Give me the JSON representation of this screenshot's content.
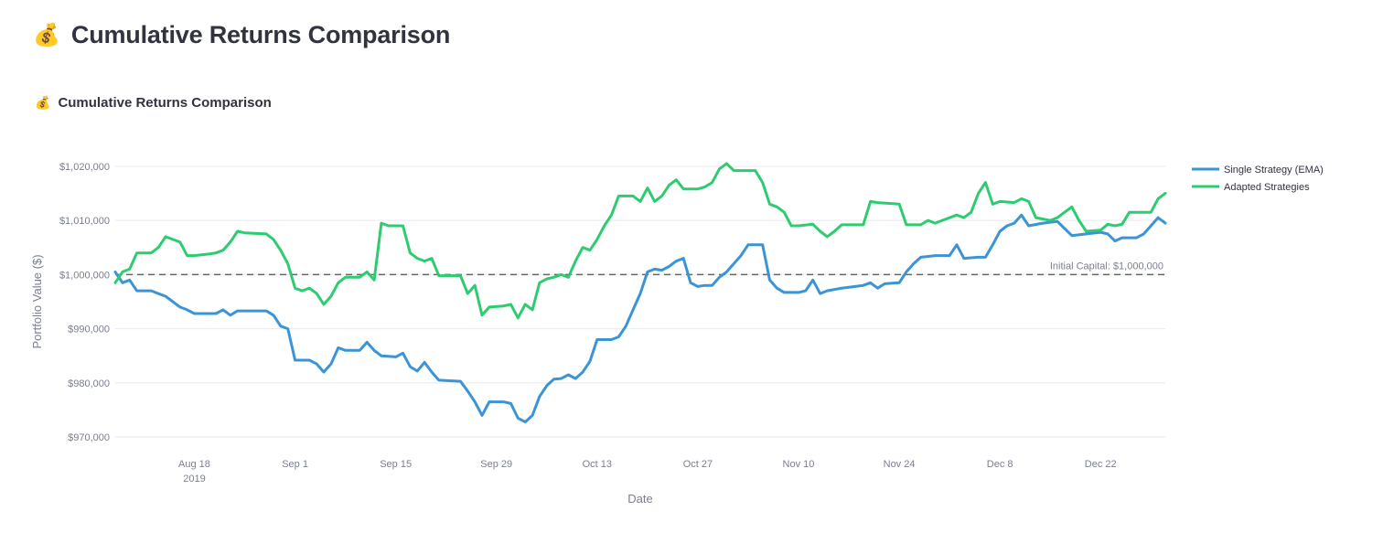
{
  "page": {
    "title": "Cumulative Returns Comparison",
    "title_icon": "money-bag-icon",
    "title_emoji": "💰"
  },
  "section": {
    "title": "Cumulative Returns Comparison",
    "icon": "money-bag-icon",
    "emoji": "💰"
  },
  "chart_data": {
    "type": "line",
    "title": "",
    "xlabel": "Date",
    "ylabel": "Portfolio Value ($)",
    "ylim": [
      968000,
      1022000
    ],
    "xlim": [
      "2019-08-07",
      "2019-12-31"
    ],
    "grid": true,
    "legend_position": "top-right",
    "x_ticks": [
      {
        "date": "2019-08-18",
        "label": "Aug 18",
        "sublabel": "2019"
      },
      {
        "date": "2019-09-01",
        "label": "Sep 1"
      },
      {
        "date": "2019-09-15",
        "label": "Sep 15"
      },
      {
        "date": "2019-09-29",
        "label": "Sep 29"
      },
      {
        "date": "2019-10-13",
        "label": "Oct 13"
      },
      {
        "date": "2019-10-27",
        "label": "Oct 27"
      },
      {
        "date": "2019-11-10",
        "label": "Nov 10"
      },
      {
        "date": "2019-11-24",
        "label": "Nov 24"
      },
      {
        "date": "2019-12-08",
        "label": "Dec 8"
      },
      {
        "date": "2019-12-22",
        "label": "Dec 22"
      }
    ],
    "y_ticks": [
      {
        "value": 970000,
        "label": "$970,000"
      },
      {
        "value": 980000,
        "label": "$980,000"
      },
      {
        "value": 990000,
        "label": "$990,000"
      },
      {
        "value": 1000000,
        "label": "$1,000,000"
      },
      {
        "value": 1010000,
        "label": "$1,010,000"
      },
      {
        "value": 1020000,
        "label": "$1,020,000"
      }
    ],
    "reference_line": {
      "value": 1000000,
      "label": "Initial Capital: $1,000,000",
      "color": "#666666",
      "style": "dashed"
    },
    "series": [
      {
        "name": "Single Strategy (EMA)",
        "color": "#3a94d6",
        "points": [
          [
            "2019-08-07",
            1000500
          ],
          [
            "2019-08-08",
            998500
          ],
          [
            "2019-08-09",
            999000
          ],
          [
            "2019-08-10",
            997000
          ],
          [
            "2019-08-12",
            997000
          ],
          [
            "2019-08-14",
            996000
          ],
          [
            "2019-08-15",
            995000
          ],
          [
            "2019-08-16",
            994000
          ],
          [
            "2019-08-17",
            993500
          ],
          [
            "2019-08-18",
            992800
          ],
          [
            "2019-08-21",
            992800
          ],
          [
            "2019-08-22",
            993500
          ],
          [
            "2019-08-23",
            992500
          ],
          [
            "2019-08-24",
            993300
          ],
          [
            "2019-08-28",
            993300
          ],
          [
            "2019-08-29",
            992500
          ],
          [
            "2019-08-30",
            990500
          ],
          [
            "2019-08-31",
            990000
          ],
          [
            "2019-09-01",
            984200
          ],
          [
            "2019-09-03",
            984200
          ],
          [
            "2019-09-04",
            983500
          ],
          [
            "2019-09-05",
            982000
          ],
          [
            "2019-09-06",
            983500
          ],
          [
            "2019-09-07",
            986500
          ],
          [
            "2019-09-08",
            986000
          ],
          [
            "2019-09-10",
            986000
          ],
          [
            "2019-09-11",
            987500
          ],
          [
            "2019-09-12",
            986000
          ],
          [
            "2019-09-13",
            985000
          ],
          [
            "2019-09-15",
            984800
          ],
          [
            "2019-09-16",
            985500
          ],
          [
            "2019-09-17",
            983000
          ],
          [
            "2019-09-18",
            982200
          ],
          [
            "2019-09-19",
            983800
          ],
          [
            "2019-09-20",
            982000
          ],
          [
            "2019-09-21",
            980500
          ],
          [
            "2019-09-24",
            980300
          ],
          [
            "2019-09-25",
            978500
          ],
          [
            "2019-09-26",
            976500
          ],
          [
            "2019-09-27",
            974000
          ],
          [
            "2019-09-28",
            976500
          ],
          [
            "2019-09-30",
            976500
          ],
          [
            "2019-10-01",
            976200
          ],
          [
            "2019-10-02",
            973500
          ],
          [
            "2019-10-03",
            972800
          ],
          [
            "2019-10-04",
            974000
          ],
          [
            "2019-10-05",
            977500
          ],
          [
            "2019-10-06",
            979500
          ],
          [
            "2019-10-07",
            980700
          ],
          [
            "2019-10-08",
            980800
          ],
          [
            "2019-10-09",
            981500
          ],
          [
            "2019-10-10",
            980800
          ],
          [
            "2019-10-11",
            982000
          ],
          [
            "2019-10-12",
            984000
          ],
          [
            "2019-10-13",
            988000
          ],
          [
            "2019-10-15",
            988000
          ],
          [
            "2019-10-16",
            988500
          ],
          [
            "2019-10-17",
            990500
          ],
          [
            "2019-10-18",
            993500
          ],
          [
            "2019-10-19",
            996500
          ],
          [
            "2019-10-20",
            1000500
          ],
          [
            "2019-10-21",
            1001000
          ],
          [
            "2019-10-22",
            1000800
          ],
          [
            "2019-10-23",
            1001500
          ],
          [
            "2019-10-24",
            1002500
          ],
          [
            "2019-10-25",
            1003000
          ],
          [
            "2019-10-26",
            998500
          ],
          [
            "2019-10-27",
            997800
          ],
          [
            "2019-10-28",
            998000
          ],
          [
            "2019-10-29",
            998000
          ],
          [
            "2019-10-30",
            999500
          ],
          [
            "2019-10-31",
            1000500
          ],
          [
            "2019-11-01",
            1002000
          ],
          [
            "2019-11-02",
            1003500
          ],
          [
            "2019-11-03",
            1005500
          ],
          [
            "2019-11-05",
            1005500
          ],
          [
            "2019-11-06",
            999000
          ],
          [
            "2019-11-07",
            997500
          ],
          [
            "2019-11-08",
            996700
          ],
          [
            "2019-11-10",
            996700
          ],
          [
            "2019-11-11",
            997000
          ],
          [
            "2019-11-12",
            999000
          ],
          [
            "2019-11-13",
            996500
          ],
          [
            "2019-11-14",
            997000
          ],
          [
            "2019-11-16",
            997500
          ],
          [
            "2019-11-19",
            998000
          ],
          [
            "2019-11-20",
            998500
          ],
          [
            "2019-11-21",
            997500
          ],
          [
            "2019-11-22",
            998300
          ],
          [
            "2019-11-24",
            998500
          ],
          [
            "2019-11-25",
            1000500
          ],
          [
            "2019-11-26",
            1002000
          ],
          [
            "2019-11-27",
            1003200
          ],
          [
            "2019-11-29",
            1003500
          ],
          [
            "2019-12-01",
            1003500
          ],
          [
            "2019-12-02",
            1005500
          ],
          [
            "2019-12-03",
            1003000
          ],
          [
            "2019-12-05",
            1003200
          ],
          [
            "2019-12-06",
            1003200
          ],
          [
            "2019-12-07",
            1005500
          ],
          [
            "2019-12-08",
            1008000
          ],
          [
            "2019-12-09",
            1009000
          ],
          [
            "2019-12-10",
            1009500
          ],
          [
            "2019-12-11",
            1011000
          ],
          [
            "2019-12-12",
            1009000
          ],
          [
            "2019-12-14",
            1009500
          ],
          [
            "2019-12-16",
            1009800
          ],
          [
            "2019-12-17",
            1008500
          ],
          [
            "2019-12-18",
            1007200
          ],
          [
            "2019-12-20",
            1007500
          ],
          [
            "2019-12-22",
            1007800
          ],
          [
            "2019-12-23",
            1007500
          ],
          [
            "2019-12-24",
            1006200
          ],
          [
            "2019-12-25",
            1006800
          ],
          [
            "2019-12-27",
            1006800
          ],
          [
            "2019-12-28",
            1007500
          ],
          [
            "2019-12-29",
            1009000
          ],
          [
            "2019-12-30",
            1010500
          ],
          [
            "2019-12-31",
            1009500
          ]
        ]
      },
      {
        "name": "Adapted Strategies",
        "color": "#2ecc71",
        "points": [
          [
            "2019-08-07",
            998500
          ],
          [
            "2019-08-08",
            1000500
          ],
          [
            "2019-08-09",
            1001000
          ],
          [
            "2019-08-10",
            1004000
          ],
          [
            "2019-08-12",
            1004000
          ],
          [
            "2019-08-13",
            1005000
          ],
          [
            "2019-08-14",
            1007000
          ],
          [
            "2019-08-15",
            1006500
          ],
          [
            "2019-08-16",
            1006000
          ],
          [
            "2019-08-17",
            1003500
          ],
          [
            "2019-08-18",
            1003500
          ],
          [
            "2019-08-20",
            1003800
          ],
          [
            "2019-08-21",
            1004000
          ],
          [
            "2019-08-22",
            1004500
          ],
          [
            "2019-08-23",
            1006000
          ],
          [
            "2019-08-24",
            1008000
          ],
          [
            "2019-08-25",
            1007700
          ],
          [
            "2019-08-28",
            1007500
          ],
          [
            "2019-08-29",
            1006500
          ],
          [
            "2019-08-30",
            1004500
          ],
          [
            "2019-08-31",
            1002000
          ],
          [
            "2019-09-01",
            997500
          ],
          [
            "2019-09-02",
            997000
          ],
          [
            "2019-09-03",
            997500
          ],
          [
            "2019-09-04",
            996500
          ],
          [
            "2019-09-05",
            994500
          ],
          [
            "2019-09-06",
            996000
          ],
          [
            "2019-09-07",
            998500
          ],
          [
            "2019-09-08",
            999500
          ],
          [
            "2019-09-10",
            999500
          ],
          [
            "2019-09-11",
            1000500
          ],
          [
            "2019-09-12",
            999000
          ],
          [
            "2019-09-13",
            1009500
          ],
          [
            "2019-09-14",
            1009000
          ],
          [
            "2019-09-16",
            1009000
          ],
          [
            "2019-09-17",
            1004000
          ],
          [
            "2019-09-18",
            1003000
          ],
          [
            "2019-09-19",
            1002500
          ],
          [
            "2019-09-20",
            1003000
          ],
          [
            "2019-09-21",
            999800
          ],
          [
            "2019-09-24",
            999800
          ],
          [
            "2019-09-25",
            996500
          ],
          [
            "2019-09-26",
            998000
          ],
          [
            "2019-09-27",
            992500
          ],
          [
            "2019-09-28",
            994000
          ],
          [
            "2019-09-30",
            994200
          ],
          [
            "2019-10-01",
            994500
          ],
          [
            "2019-10-02",
            992000
          ],
          [
            "2019-10-03",
            994500
          ],
          [
            "2019-10-04",
            993500
          ],
          [
            "2019-10-05",
            998500
          ],
          [
            "2019-10-06",
            999200
          ],
          [
            "2019-10-07",
            999500
          ],
          [
            "2019-10-08",
            1000000
          ],
          [
            "2019-10-09",
            999500
          ],
          [
            "2019-10-10",
            1002500
          ],
          [
            "2019-10-11",
            1005000
          ],
          [
            "2019-10-12",
            1004500
          ],
          [
            "2019-10-13",
            1006500
          ],
          [
            "2019-10-14",
            1009000
          ],
          [
            "2019-10-15",
            1011000
          ],
          [
            "2019-10-16",
            1014500
          ],
          [
            "2019-10-18",
            1014500
          ],
          [
            "2019-10-19",
            1013500
          ],
          [
            "2019-10-20",
            1016000
          ],
          [
            "2019-10-21",
            1013500
          ],
          [
            "2019-10-22",
            1014500
          ],
          [
            "2019-10-23",
            1016500
          ],
          [
            "2019-10-24",
            1017500
          ],
          [
            "2019-10-25",
            1015800
          ],
          [
            "2019-10-27",
            1015800
          ],
          [
            "2019-10-28",
            1016200
          ],
          [
            "2019-10-29",
            1017000
          ],
          [
            "2019-10-30",
            1019500
          ],
          [
            "2019-10-31",
            1020500
          ],
          [
            "2019-11-01",
            1019200
          ],
          [
            "2019-11-04",
            1019200
          ],
          [
            "2019-11-05",
            1017000
          ],
          [
            "2019-11-06",
            1013000
          ],
          [
            "2019-11-07",
            1012500
          ],
          [
            "2019-11-08",
            1011500
          ],
          [
            "2019-11-09",
            1009000
          ],
          [
            "2019-11-10",
            1009000
          ],
          [
            "2019-11-12",
            1009300
          ],
          [
            "2019-11-13",
            1008000
          ],
          [
            "2019-11-14",
            1007000
          ],
          [
            "2019-11-15",
            1008000
          ],
          [
            "2019-11-16",
            1009200
          ],
          [
            "2019-11-19",
            1009200
          ],
          [
            "2019-11-20",
            1013500
          ],
          [
            "2019-11-21",
            1013300
          ],
          [
            "2019-11-24",
            1013000
          ],
          [
            "2019-11-25",
            1009200
          ],
          [
            "2019-11-27",
            1009200
          ],
          [
            "2019-11-28",
            1010000
          ],
          [
            "2019-11-29",
            1009500
          ],
          [
            "2019-11-30",
            1010000
          ],
          [
            "2019-12-01",
            1010500
          ],
          [
            "2019-12-02",
            1011000
          ],
          [
            "2019-12-03",
            1010500
          ],
          [
            "2019-12-04",
            1011500
          ],
          [
            "2019-12-05",
            1015000
          ],
          [
            "2019-12-06",
            1017000
          ],
          [
            "2019-12-07",
            1013000
          ],
          [
            "2019-12-08",
            1013500
          ],
          [
            "2019-12-10",
            1013300
          ],
          [
            "2019-12-11",
            1014000
          ],
          [
            "2019-12-12",
            1013500
          ],
          [
            "2019-12-13",
            1010500
          ],
          [
            "2019-12-15",
            1010000
          ],
          [
            "2019-12-16",
            1010500
          ],
          [
            "2019-12-17",
            1011500
          ],
          [
            "2019-12-18",
            1012500
          ],
          [
            "2019-12-19",
            1010000
          ],
          [
            "2019-12-20",
            1008000
          ],
          [
            "2019-12-22",
            1008200
          ],
          [
            "2019-12-23",
            1009300
          ],
          [
            "2019-12-24",
            1009000
          ],
          [
            "2019-12-25",
            1009300
          ],
          [
            "2019-12-26",
            1011500
          ],
          [
            "2019-12-29",
            1011500
          ],
          [
            "2019-12-30",
            1014000
          ],
          [
            "2019-12-31",
            1015000
          ]
        ]
      }
    ]
  }
}
